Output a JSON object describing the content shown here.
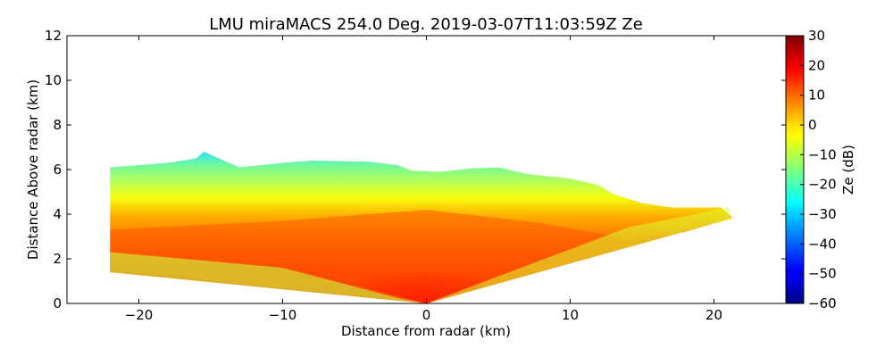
{
  "chart_data": {
    "type": "heatmap",
    "title": "LMU miraMACS 254.0 Deg. 2019-03-07T11:03:59Z  Ze",
    "xlabel": "Distance from radar (km)",
    "ylabel": "Distance Above radar  (km)",
    "xlim": [
      -25,
      25
    ],
    "ylim": [
      0,
      12
    ],
    "xticks": [
      -20,
      -10,
      0,
      10,
      20
    ],
    "xtick_labels": [
      "−20",
      "−10",
      "0",
      "10",
      "20"
    ],
    "yticks": [
      0,
      2,
      4,
      6,
      8,
      10,
      12
    ],
    "ytick_labels": [
      "0",
      "2",
      "4",
      "6",
      "8",
      "10",
      "12"
    ],
    "colorbar": {
      "label": "Ze (dB)",
      "colormap": "jet",
      "range": [
        -60,
        30
      ],
      "ticks": [
        30,
        20,
        10,
        0,
        -10,
        -20,
        -30,
        -40,
        -50,
        -60
      ],
      "tick_labels": [
        "30",
        "20",
        "10",
        "0",
        "−10",
        "−20",
        "−30",
        "−40",
        "−50",
        "−60"
      ]
    },
    "echo_top_profile_km": [
      [
        -22.0,
        6.1
      ],
      [
        -20.0,
        6.2
      ],
      [
        -18.0,
        6.3
      ],
      [
        -16.0,
        6.5
      ],
      [
        -15.5,
        6.8
      ],
      [
        -13.0,
        6.1
      ],
      [
        -10.0,
        6.3
      ],
      [
        -8.0,
        6.4
      ],
      [
        -4.0,
        6.35
      ],
      [
        -2.0,
        6.2
      ],
      [
        -1.0,
        5.95
      ],
      [
        1.0,
        5.9
      ],
      [
        3.0,
        6.05
      ],
      [
        5.0,
        6.1
      ],
      [
        7.0,
        5.8
      ],
      [
        10.0,
        5.6
      ],
      [
        12.0,
        5.3
      ],
      [
        13.0,
        4.9
      ],
      [
        15.0,
        4.5
      ],
      [
        17.0,
        4.3
      ],
      [
        20.5,
        4.3
      ],
      [
        21.2,
        3.9
      ]
    ],
    "reflectivity_ranges_dBZ": {
      "core_near_radar": [
        15,
        25
      ],
      "middle_layer_0_3km": [
        5,
        20
      ],
      "upper_layer_4_6km": [
        -20,
        -5
      ],
      "cloud_top": [
        -35,
        -25
      ]
    }
  }
}
